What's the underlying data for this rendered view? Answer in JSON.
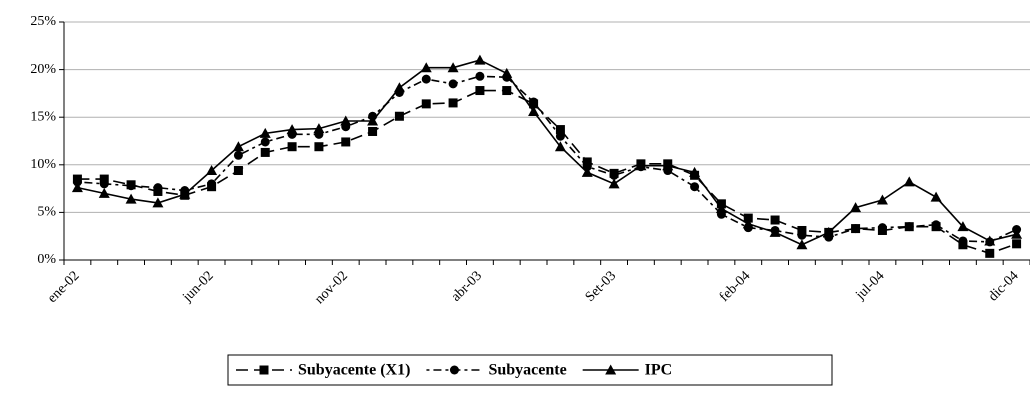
{
  "chart_data": {
    "type": "line",
    "categories": [
      "ene-02",
      null,
      null,
      null,
      null,
      "jun-02",
      null,
      null,
      null,
      null,
      "nov-02",
      null,
      null,
      null,
      null,
      "abr-03",
      null,
      null,
      null,
      null,
      "Set-03",
      null,
      null,
      null,
      null,
      "feb-04",
      null,
      null,
      null,
      null,
      "jul-04",
      null,
      null,
      null,
      null,
      "dic-04"
    ],
    "series": [
      {
        "name": "Subyacente (X1)",
        "color": "#000000",
        "marker": "square",
        "dash": "dashed",
        "values": [
          8.5,
          8.5,
          7.9,
          7.2,
          6.8,
          7.7,
          9.4,
          11.3,
          11.9,
          11.9,
          12.4,
          13.5,
          15.1,
          16.4,
          16.5,
          17.8,
          17.8,
          16.4,
          13.7,
          10.3,
          9.1,
          10.1,
          10.1,
          8.9,
          5.9,
          4.4,
          4.2,
          3.1,
          2.9,
          3.3,
          3.1,
          3.5,
          3.5,
          1.6,
          0.7,
          1.7
        ]
      },
      {
        "name": "Subyacente",
        "color": "#000000",
        "marker": "circle",
        "dash": "dashdot",
        "values": [
          8.2,
          8.0,
          7.8,
          7.6,
          7.3,
          8.0,
          11.0,
          12.4,
          13.2,
          13.2,
          14.0,
          15.1,
          17.6,
          19.0,
          18.5,
          19.3,
          19.2,
          16.6,
          13.0,
          9.8,
          8.9,
          9.8,
          9.4,
          7.7,
          4.8,
          3.4,
          3.1,
          2.6,
          2.4,
          3.3,
          3.4,
          3.5,
          3.7,
          2.0,
          1.9,
          3.2
        ]
      },
      {
        "name": "IPC",
        "color": "#000000",
        "marker": "triangle",
        "dash": "solid",
        "values": [
          7.6,
          7.0,
          6.4,
          6.0,
          6.9,
          9.4,
          11.9,
          13.3,
          13.7,
          13.8,
          14.6,
          14.6,
          18.1,
          20.2,
          20.2,
          21.0,
          19.6,
          15.6,
          11.9,
          9.2,
          8.0,
          9.9,
          9.9,
          9.2,
          5.4,
          3.8,
          2.9,
          1.6,
          2.9,
          5.5,
          6.3,
          8.2,
          6.6,
          3.5,
          2.0,
          2.7
        ]
      }
    ],
    "ylim": [
      0,
      25
    ],
    "yticks": [
      {
        "value": 0,
        "label": "0%"
      },
      {
        "value": 5,
        "label": "5%"
      },
      {
        "value": 10,
        "label": "10%"
      },
      {
        "value": 15,
        "label": "15%"
      },
      {
        "value": 20,
        "label": "20%"
      },
      {
        "value": 25,
        "label": "25%"
      }
    ],
    "grid": true,
    "legend": "bottom"
  }
}
